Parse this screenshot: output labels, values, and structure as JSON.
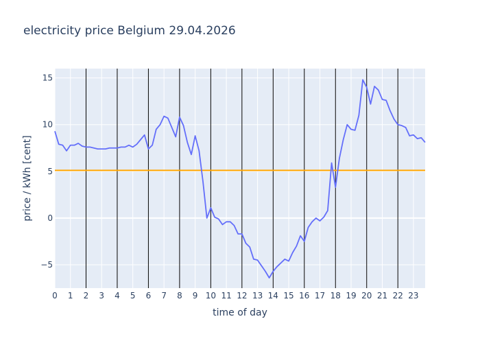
{
  "chart_data": {
    "type": "line",
    "title": "electricity price Belgium 29.04.2026",
    "xlabel": "time of day",
    "ylabel": "price / kWh [cent]",
    "xlim": [
      0,
      23.75
    ],
    "ylim": [
      -7.5,
      16
    ],
    "x_ticks": [
      0,
      1,
      2,
      3,
      4,
      5,
      6,
      7,
      8,
      9,
      10,
      11,
      12,
      13,
      14,
      15,
      16,
      17,
      18,
      19,
      20,
      21,
      22,
      23
    ],
    "y_ticks": [
      -5,
      0,
      5,
      10,
      15
    ],
    "y_tick_labels": [
      "−5",
      "0",
      "5",
      "10",
      "15"
    ],
    "vertical_lines": [
      2,
      4,
      6,
      8,
      10,
      12,
      14,
      16,
      18,
      20,
      22
    ],
    "reference_line": {
      "y": 5.1,
      "color": "#ffa500"
    },
    "series": [
      {
        "color": "#636efa",
        "x": [
          0,
          0.25,
          0.5,
          0.75,
          1,
          1.25,
          1.5,
          1.75,
          2,
          2.25,
          2.5,
          2.75,
          3,
          3.25,
          3.5,
          3.75,
          4,
          4.25,
          4.5,
          4.75,
          5,
          5.25,
          5.5,
          5.75,
          6,
          6.25,
          6.5,
          6.75,
          7,
          7.25,
          7.5,
          7.75,
          8,
          8.25,
          8.5,
          8.75,
          9,
          9.25,
          9.5,
          9.75,
          10,
          10.25,
          10.5,
          10.75,
          11,
          11.25,
          11.5,
          11.75,
          12,
          12.25,
          12.5,
          12.75,
          13,
          13.25,
          13.5,
          13.75,
          14,
          14.25,
          14.5,
          14.75,
          15,
          15.25,
          15.5,
          15.75,
          16,
          16.25,
          16.5,
          16.75,
          17,
          17.25,
          17.5,
          17.75,
          18,
          18.25,
          18.5,
          18.75,
          19,
          19.25,
          19.5,
          19.75,
          20,
          20.25,
          20.5,
          20.75,
          21,
          21.25,
          21.5,
          21.75,
          22,
          22.25,
          22.5,
          22.75,
          23,
          23.25,
          23.5,
          23.75
        ],
        "values": [
          9.3,
          7.9,
          7.8,
          7.2,
          7.8,
          7.8,
          8.0,
          7.7,
          7.6,
          7.6,
          7.5,
          7.4,
          7.4,
          7.4,
          7.5,
          7.5,
          7.5,
          7.6,
          7.6,
          7.8,
          7.6,
          7.9,
          8.4,
          8.9,
          7.4,
          7.8,
          9.5,
          10.0,
          10.9,
          10.7,
          9.7,
          8.7,
          10.8,
          9.9,
          8.1,
          6.8,
          8.8,
          7.2,
          3.9,
          0.0,
          1.1,
          0.1,
          -0.1,
          -0.7,
          -0.4,
          -0.4,
          -0.8,
          -1.7,
          -1.7,
          -2.7,
          -3.1,
          -4.4,
          -4.5,
          -5.1,
          -5.7,
          -6.4,
          -5.7,
          -5.2,
          -4.8,
          -4.4,
          -4.6,
          -3.7,
          -3.0,
          -1.9,
          -2.5,
          -1.0,
          -0.4,
          0.0,
          -0.3,
          0.1,
          0.8,
          5.9,
          3.3,
          6.4,
          8.4,
          10.0,
          9.5,
          9.4,
          11.0,
          14.8,
          14.0,
          12.2,
          14.1,
          13.7,
          12.7,
          12.6,
          11.5,
          10.6,
          10.0,
          9.9,
          9.7,
          8.8,
          8.9,
          8.5,
          8.6,
          8.1
        ]
      }
    ],
    "grid": true,
    "legend": "none"
  }
}
